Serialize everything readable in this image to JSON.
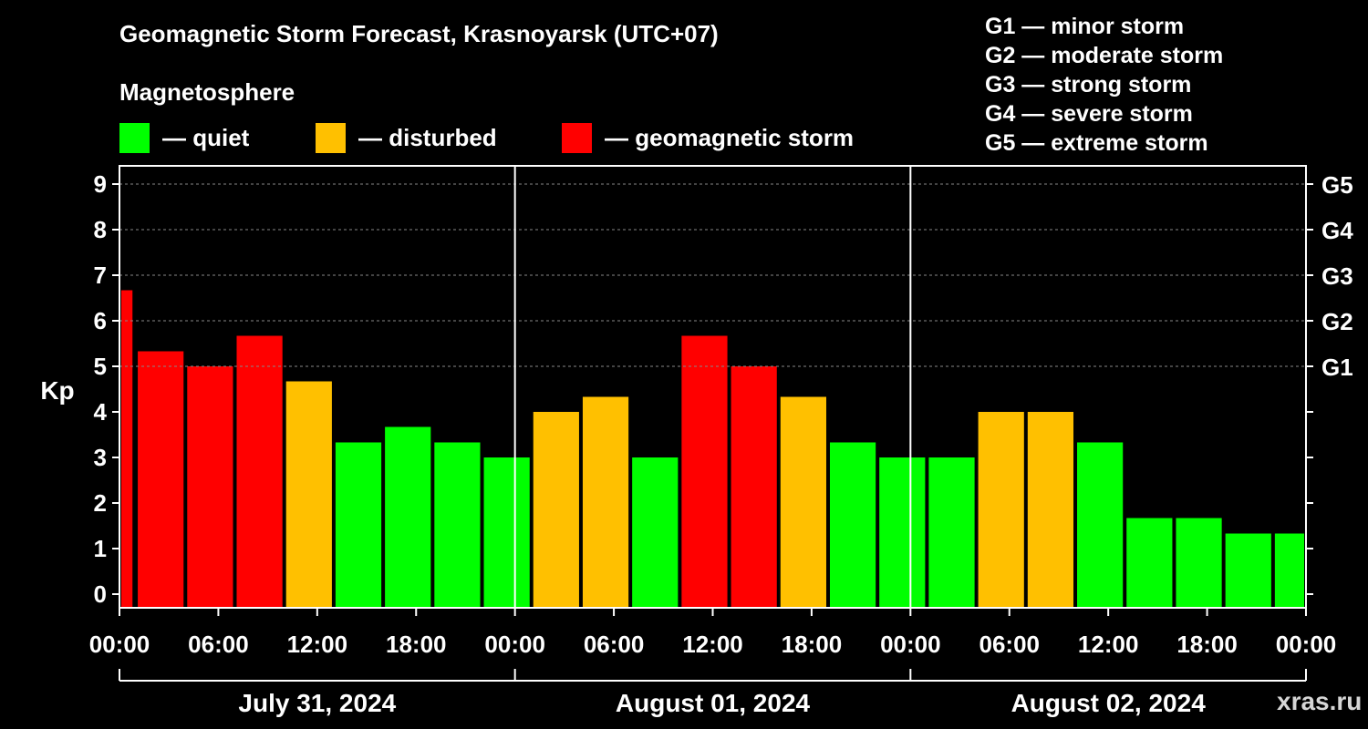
{
  "colors": {
    "quiet": "#00ff00",
    "disturbed": "#ffc000",
    "storm": "#ff0000",
    "background": "#000000",
    "axis": "#ffffff",
    "grid": "#888888"
  },
  "header": {
    "title": "Geomagnetic Storm Forecast, Krasnoyarsk (UTC+07)",
    "subtitle": "Magnetosphere"
  },
  "legend": {
    "items": [
      {
        "key": "quiet",
        "label": "— quiet"
      },
      {
        "key": "disturbed",
        "label": "— disturbed"
      },
      {
        "key": "storm",
        "label": "— geomagnetic storm"
      }
    ]
  },
  "g_scale": {
    "items": [
      "G1 — minor storm",
      "G2 — moderate storm",
      "G3 — strong storm",
      "G4 — severe storm",
      "G5 — extreme storm"
    ]
  },
  "watermark": "xras.ru",
  "chart_data": {
    "type": "bar",
    "title": "Geomagnetic Storm Forecast, Krasnoyarsk (UTC+07)",
    "ylabel": "Kp",
    "xlabel": "",
    "ylim": [
      -0.3,
      9.4
    ],
    "yticks": [
      0,
      1,
      2,
      3,
      4,
      5,
      6,
      7,
      8,
      9
    ],
    "ytick_labels": [
      "0",
      "1",
      "2",
      "3",
      "4",
      "5",
      "6",
      "7",
      "8",
      "9"
    ],
    "grid_levels": [
      5,
      6,
      7,
      8,
      9
    ],
    "g_levels": [
      {
        "value": 5,
        "label": "G1"
      },
      {
        "value": 6,
        "label": "G2"
      },
      {
        "value": 7,
        "label": "G3"
      },
      {
        "value": 8,
        "label": "G4"
      },
      {
        "value": 9,
        "label": "G5"
      }
    ],
    "x_range_hours": [
      0,
      72
    ],
    "xticks_hours": [
      0,
      6,
      12,
      18,
      24,
      30,
      36,
      42,
      48,
      54,
      60,
      66,
      72
    ],
    "xtick_labels": [
      "00:00",
      "06:00",
      "12:00",
      "18:00",
      "00:00",
      "06:00",
      "12:00",
      "18:00",
      "00:00",
      "06:00",
      "12:00",
      "18:00",
      "00:00"
    ],
    "day_boundaries_hours": [
      24,
      48
    ],
    "days": [
      {
        "label": "July 31, 2024",
        "start": 0,
        "end": 24
      },
      {
        "label": "August 01, 2024",
        "start": 24,
        "end": 48
      },
      {
        "label": "August 02, 2024",
        "start": 48,
        "end": 72
      }
    ],
    "bars": [
      {
        "start": 0,
        "end": 0.9,
        "value": 6.67,
        "level": "storm"
      },
      {
        "start": 1,
        "end": 4,
        "value": 5.33,
        "level": "storm"
      },
      {
        "start": 4,
        "end": 7,
        "value": 5.0,
        "level": "storm"
      },
      {
        "start": 7,
        "end": 10,
        "value": 5.67,
        "level": "storm"
      },
      {
        "start": 10,
        "end": 13,
        "value": 4.67,
        "level": "disturbed"
      },
      {
        "start": 13,
        "end": 16,
        "value": 3.33,
        "level": "quiet"
      },
      {
        "start": 16,
        "end": 19,
        "value": 3.67,
        "level": "quiet"
      },
      {
        "start": 19,
        "end": 22,
        "value": 3.33,
        "level": "quiet"
      },
      {
        "start": 22,
        "end": 25,
        "value": 3.0,
        "level": "quiet"
      },
      {
        "start": 25,
        "end": 28,
        "value": 4.0,
        "level": "disturbed"
      },
      {
        "start": 28,
        "end": 31,
        "value": 4.33,
        "level": "disturbed"
      },
      {
        "start": 31,
        "end": 34,
        "value": 3.0,
        "level": "quiet"
      },
      {
        "start": 34,
        "end": 37,
        "value": 5.67,
        "level": "storm"
      },
      {
        "start": 37,
        "end": 40,
        "value": 5.0,
        "level": "storm"
      },
      {
        "start": 40,
        "end": 43,
        "value": 4.33,
        "level": "disturbed"
      },
      {
        "start": 43,
        "end": 46,
        "value": 3.33,
        "level": "quiet"
      },
      {
        "start": 46,
        "end": 49,
        "value": 3.0,
        "level": "quiet"
      },
      {
        "start": 49,
        "end": 52,
        "value": 3.0,
        "level": "quiet"
      },
      {
        "start": 52,
        "end": 55,
        "value": 4.0,
        "level": "disturbed"
      },
      {
        "start": 55,
        "end": 58,
        "value": 4.0,
        "level": "disturbed"
      },
      {
        "start": 58,
        "end": 61,
        "value": 3.33,
        "level": "quiet"
      },
      {
        "start": 61,
        "end": 64,
        "value": 1.67,
        "level": "quiet"
      },
      {
        "start": 64,
        "end": 67,
        "value": 1.67,
        "level": "quiet"
      },
      {
        "start": 67,
        "end": 70,
        "value": 1.33,
        "level": "quiet"
      },
      {
        "start": 70,
        "end": 72,
        "value": 1.33,
        "level": "quiet"
      }
    ]
  }
}
